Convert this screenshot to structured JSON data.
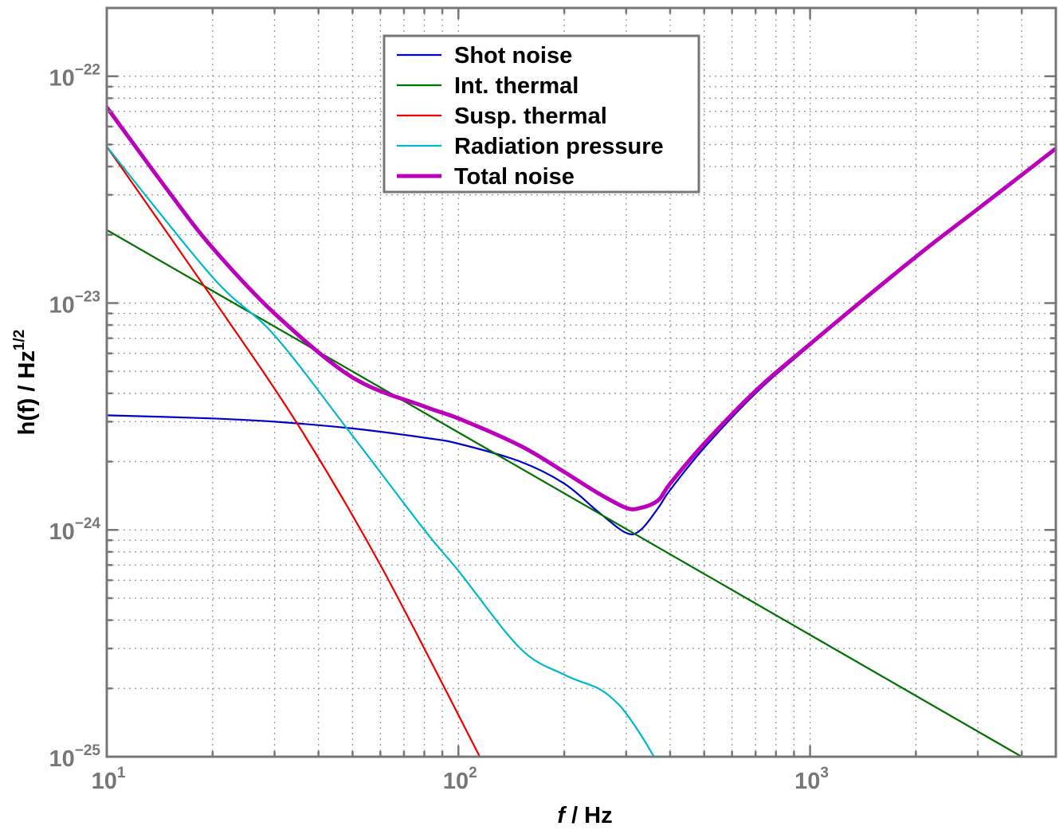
{
  "chart_data": {
    "type": "line",
    "title": "",
    "xlabel_italic": "f",
    "xlabel_rest": " / Hz",
    "ylabel_base": "h(f) / Hz",
    "ylabel_sup": "1/2",
    "xscale": "log",
    "yscale": "log",
    "xlim": [
      10,
      5000
    ],
    "ylim": [
      1e-25,
      2e-22
    ],
    "grid": true,
    "legend_position": "top-center",
    "x_ticks": [
      {
        "value": 10,
        "base": "10",
        "exp": "1"
      },
      {
        "value": 100,
        "base": "10",
        "exp": "2"
      },
      {
        "value": 1000,
        "base": "10",
        "exp": "3"
      }
    ],
    "y_ticks": [
      {
        "value": 1e-25,
        "base": "10",
        "exp": "−25"
      },
      {
        "value": 1e-24,
        "base": "10",
        "exp": "−24"
      },
      {
        "value": 1e-23,
        "base": "10",
        "exp": "−23"
      },
      {
        "value": 1e-22,
        "base": "10",
        "exp": "−22"
      }
    ],
    "series": [
      {
        "name": "Shot noise",
        "color": "#0000cc",
        "x": [
          10,
          20,
          30,
          50,
          80,
          100,
          150,
          200,
          250,
          300,
          330,
          370,
          400,
          500,
          700,
          1000,
          2000,
          3000,
          5000
        ],
        "y": [
          3.2e-24,
          3.1e-24,
          3e-24,
          2.8e-24,
          2.55e-24,
          2.4e-24,
          2e-24,
          1.6e-24,
          1.2e-24,
          9.7e-25,
          1e-24,
          1.25e-24,
          1.5e-24,
          2.3e-24,
          4e-24,
          6.5e-24,
          1.6e-23,
          2.6e-23,
          4.8e-23
        ]
      },
      {
        "name": "Int. thermal",
        "color": "#007000",
        "x": [
          10,
          4000
        ],
        "y": [
          2.1e-23,
          1e-25
        ]
      },
      {
        "name": "Susp. thermal",
        "color": "#ee0000",
        "x": [
          10,
          20,
          35,
          60,
          115
        ],
        "y": [
          4.9e-23,
          1.05e-23,
          2.9e-24,
          7e-25,
          1e-25
        ]
      },
      {
        "name": "Radiation pressure",
        "color": "#00b8c8",
        "x": [
          10,
          20,
          30,
          50,
          80,
          100,
          150,
          200,
          250,
          280,
          300,
          330,
          360
        ],
        "y": [
          4.9e-23,
          1.3e-23,
          7.2e-24,
          2.6e-24,
          1e-24,
          6.6e-25,
          3e-25,
          2.3e-25,
          2e-25,
          1.75e-25,
          1.55e-25,
          1.25e-25,
          1e-25
        ]
      },
      {
        "name": "Total noise",
        "color": "#bb00bb",
        "x": [
          10,
          15,
          20,
          30,
          50,
          80,
          100,
          150,
          200,
          250,
          300,
          330,
          370,
          400,
          500,
          700,
          1000,
          2000,
          3000,
          5000
        ],
        "y": [
          7.3e-23,
          3.1e-23,
          1.75e-23,
          9e-24,
          4.7e-24,
          3.5e-24,
          3.1e-24,
          2.35e-24,
          1.8e-24,
          1.45e-24,
          1.25e-24,
          1.25e-24,
          1.35e-24,
          1.6e-24,
          2.4e-24,
          4.1e-24,
          6.6e-24,
          1.6e-23,
          2.6e-23,
          4.8e-23
        ]
      }
    ]
  }
}
